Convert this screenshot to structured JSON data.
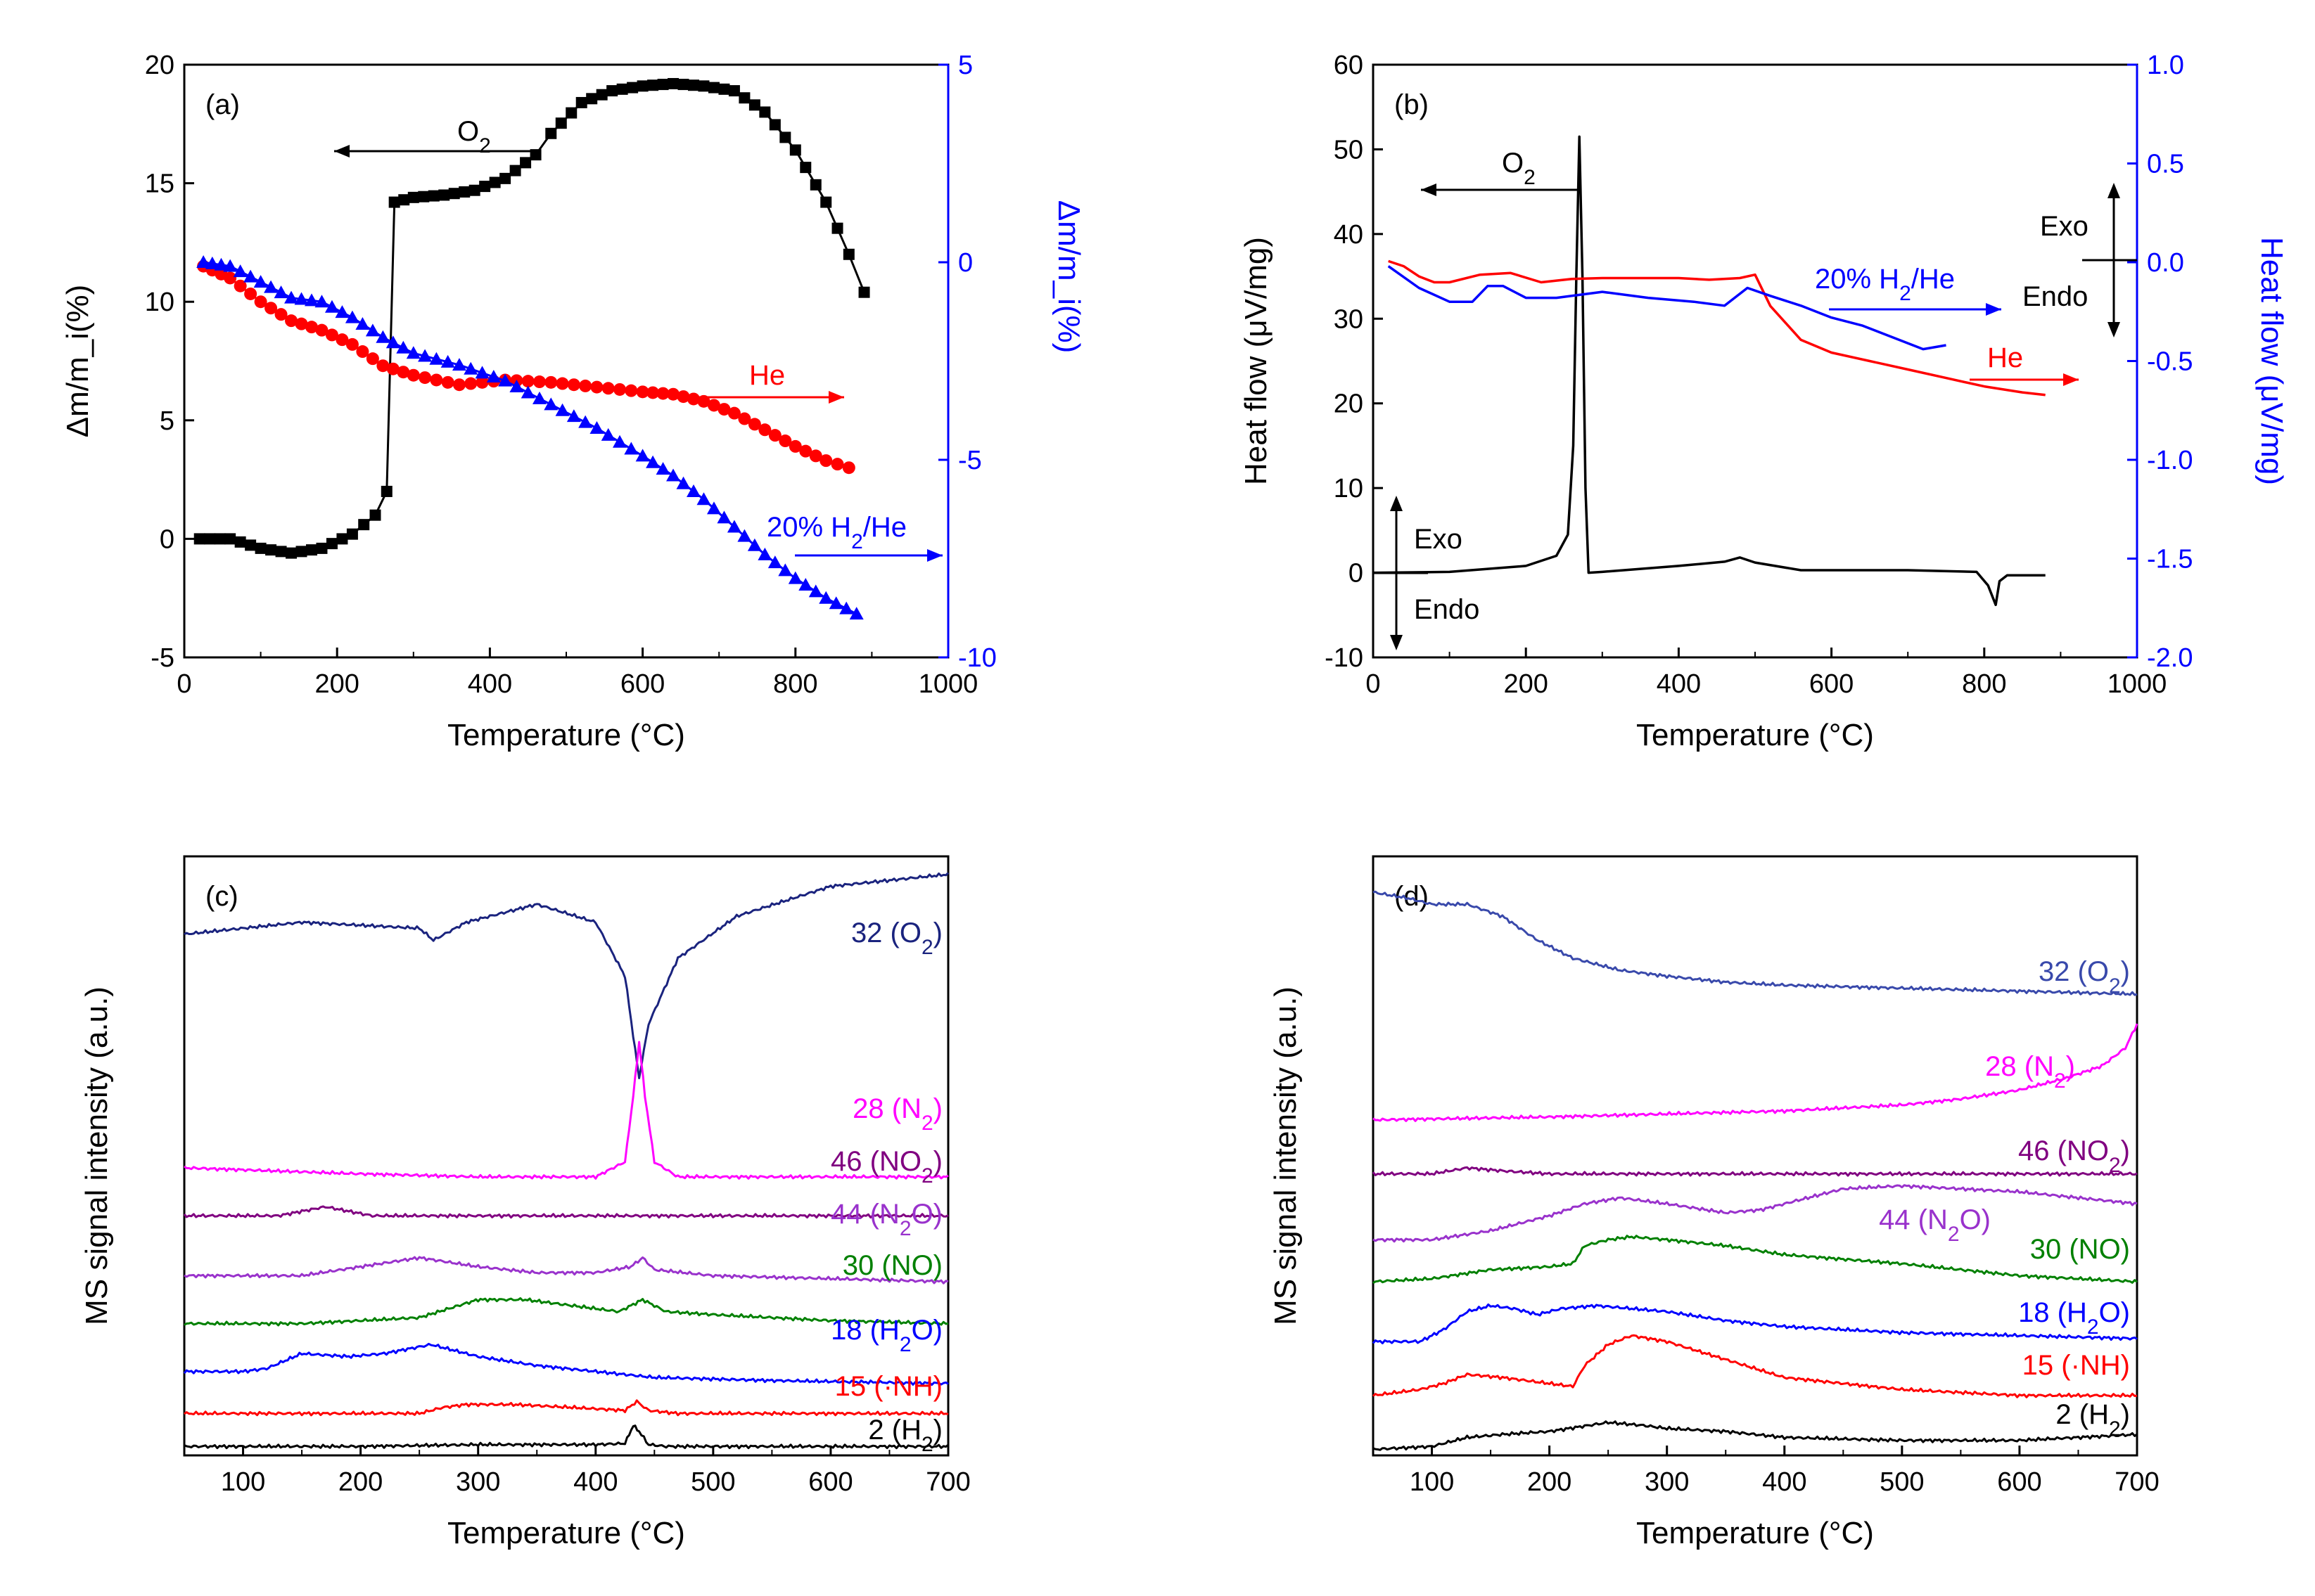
{
  "figure": {
    "name": "Four-panel thermal analysis and mass spectrometry figure"
  },
  "chart_data": [
    {
      "panel": "(a)",
      "type": "scatter",
      "title": "",
      "xlabel": "Temperature (°C)",
      "ylabel": "Δm/m_i(%)",
      "ylabel_right": "Δm/m_i(%)",
      "xlim": [
        0,
        1000
      ],
      "ylim": [
        -5,
        20
      ],
      "ylim_right": [
        -10,
        5
      ],
      "xticks": [
        0,
        200,
        400,
        600,
        800,
        1000
      ],
      "yticks": [
        -5,
        0,
        5,
        10,
        15,
        20
      ],
      "yticks_right": [
        -10,
        -5,
        0,
        5
      ],
      "series": [
        {
          "name": "O2",
          "axis": "left",
          "color": "#000000",
          "marker": "square",
          "x": [
            20,
            60,
            100,
            140,
            180,
            220,
            250,
            265,
            275,
            300,
            340,
            380,
            420,
            460,
            480,
            520,
            560,
            600,
            640,
            680,
            720,
            760,
            800,
            840,
            870,
            890
          ],
          "y": [
            0,
            0,
            -0.4,
            -0.6,
            -0.4,
            0.2,
            1.0,
            2.0,
            14.2,
            14.4,
            14.5,
            14.7,
            15.2,
            16.2,
            17.1,
            18.4,
            18.9,
            19.1,
            19.2,
            19.1,
            18.9,
            18.0,
            16.4,
            14.2,
            12.0,
            10.4
          ]
        },
        {
          "name": "He",
          "axis": "left",
          "color": "#ff0000",
          "marker": "circle",
          "x": [
            25,
            60,
            100,
            140,
            180,
            220,
            260,
            300,
            360,
            420,
            480,
            540,
            600,
            640,
            680,
            720,
            760,
            800,
            840,
            870
          ],
          "y": [
            11.5,
            11.0,
            10.0,
            9.2,
            8.8,
            8.2,
            7.3,
            6.9,
            6.5,
            6.7,
            6.6,
            6.4,
            6.2,
            6.1,
            5.8,
            5.3,
            4.6,
            3.9,
            3.3,
            3.0
          ]
        },
        {
          "name": "20% H2/He",
          "axis": "right",
          "color": "#0000ff",
          "marker": "triangle",
          "x": [
            25,
            60,
            100,
            140,
            180,
            220,
            260,
            300,
            360,
            420,
            480,
            540,
            600,
            640,
            680,
            720,
            760,
            800,
            840,
            880
          ],
          "y": [
            0,
            -0.1,
            -0.5,
            -0.9,
            -1.0,
            -1.4,
            -1.9,
            -2.3,
            -2.6,
            -3.0,
            -3.6,
            -4.2,
            -4.9,
            -5.4,
            -6.0,
            -6.7,
            -7.4,
            -8.0,
            -8.5,
            -8.9
          ]
        }
      ],
      "annotations": [
        {
          "text": "O2",
          "arrow": "left"
        },
        {
          "text": "He",
          "arrow": "right"
        },
        {
          "text": "20% H2/He",
          "arrow": "right"
        }
      ]
    },
    {
      "panel": "(b)",
      "type": "line",
      "title": "",
      "xlabel": "Temperature (°C)",
      "ylabel": "Heat flow (μV/mg)",
      "ylabel_right": "Heat flow (μV/mg)",
      "xlim": [
        0,
        1000
      ],
      "ylim": [
        -10,
        60
      ],
      "ylim_right": [
        -2.0,
        1.0
      ],
      "xticks": [
        0,
        200,
        400,
        600,
        800,
        1000
      ],
      "yticks": [
        -10,
        0,
        10,
        20,
        30,
        40,
        50,
        60
      ],
      "yticks_right": [
        -2.0,
        -1.5,
        -1.0,
        -0.5,
        0.0,
        0.5,
        1.0
      ],
      "series": [
        {
          "name": "O2",
          "axis": "left",
          "color": "#000000",
          "x": [
            0,
            100,
            200,
            240,
            255,
            262,
            266,
            270,
            274,
            278,
            282,
            300,
            400,
            460,
            480,
            500,
            560,
            700,
            790,
            805,
            815,
            820,
            830,
            880
          ],
          "y": [
            0,
            0.1,
            0.8,
            2.0,
            4.5,
            15,
            35,
            51.5,
            35,
            10,
            0,
            0.1,
            0.8,
            1.3,
            1.8,
            1.2,
            0.3,
            0.3,
            0.1,
            -1.5,
            -3.8,
            -1.0,
            -0.3,
            -0.3
          ]
        },
        {
          "name": "He",
          "axis": "left",
          "color": "#ff0000",
          "x": [
            20,
            40,
            60,
            80,
            100,
            140,
            180,
            220,
            260,
            300,
            360,
            400,
            440,
            480,
            500,
            520,
            560,
            600,
            650,
            700,
            750,
            800,
            850,
            880
          ],
          "y": [
            36.8,
            36.2,
            35.0,
            34.3,
            34.3,
            35.2,
            35.4,
            34.3,
            34.7,
            34.8,
            34.8,
            34.8,
            34.6,
            34.8,
            35.2,
            31.5,
            27.5,
            26.0,
            25.0,
            24.0,
            23.0,
            22.0,
            21.3,
            21.0
          ]
        },
        {
          "name": "20% H2/He",
          "axis": "right",
          "color": "#0000ff",
          "x": [
            20,
            60,
            100,
            130,
            150,
            170,
            200,
            240,
            300,
            360,
            420,
            460,
            490,
            520,
            560,
            600,
            640,
            680,
            720,
            750
          ],
          "y": [
            -0.02,
            -0.13,
            -0.2,
            -0.2,
            -0.12,
            -0.12,
            -0.18,
            -0.18,
            -0.15,
            -0.18,
            -0.2,
            -0.22,
            -0.13,
            -0.17,
            -0.22,
            -0.28,
            -0.32,
            -0.38,
            -0.44,
            -0.42
          ]
        }
      ],
      "annotations": [
        {
          "text": "O2",
          "arrow": "left"
        },
        {
          "text": "20% H2/He",
          "arrow": "right"
        },
        {
          "text": "He",
          "arrow": "right"
        },
        {
          "text": "Exo"
        },
        {
          "text": "Endo"
        },
        {
          "text": "Exo"
        },
        {
          "text": "Endo"
        }
      ]
    },
    {
      "panel": "(c)",
      "type": "line",
      "title": "",
      "xlabel": "Temperature (°C)",
      "ylabel": "MS signal intensity (a.u.)",
      "xlim": [
        50,
        700
      ],
      "xticks": [
        100,
        200,
        300,
        400,
        500,
        600,
        700
      ],
      "y_units": "arbitrary (stacked, normalized)",
      "series": [
        {
          "name": "32 (O2)",
          "color": "#1a237e",
          "x": [
            50,
            150,
            250,
            262,
            290,
            350,
            400,
            425,
            432,
            437,
            445,
            470,
            520,
            600,
            700
          ],
          "y": [
            0.87,
            0.89,
            0.88,
            0.86,
            0.89,
            0.92,
            0.89,
            0.8,
            0.7,
            0.63,
            0.72,
            0.83,
            0.9,
            0.95,
            0.97
          ]
        },
        {
          "name": "28 (N2)",
          "color": "#ff00ff",
          "x": [
            50,
            200,
            300,
            400,
            425,
            432,
            437,
            442,
            450,
            470,
            550,
            700
          ],
          "y": [
            0.48,
            0.47,
            0.465,
            0.465,
            0.49,
            0.6,
            0.69,
            0.6,
            0.49,
            0.465,
            0.465,
            0.465
          ]
        },
        {
          "name": "46 (NO2)",
          "color": "#800080",
          "x": [
            50,
            130,
            170,
            210,
            260,
            400,
            700
          ],
          "y": [
            0.4,
            0.4,
            0.415,
            0.4,
            0.4,
            0.4,
            0.4
          ]
        },
        {
          "name": "44 (N2O)",
          "color": "#9932cc",
          "x": [
            50,
            150,
            200,
            250,
            300,
            350,
            400,
            430,
            440,
            450,
            500,
            600,
            700
          ],
          "y": [
            0.3,
            0.3,
            0.315,
            0.33,
            0.315,
            0.305,
            0.305,
            0.315,
            0.33,
            0.31,
            0.3,
            0.295,
            0.29
          ]
        },
        {
          "name": "30 (NO)",
          "color": "#008000",
          "x": [
            50,
            150,
            250,
            275,
            300,
            340,
            380,
            420,
            430,
            440,
            460,
            500,
            600,
            700
          ],
          "y": [
            0.22,
            0.22,
            0.23,
            0.245,
            0.26,
            0.26,
            0.25,
            0.24,
            0.25,
            0.26,
            0.24,
            0.235,
            0.225,
            0.22
          ]
        },
        {
          "name": "18 (H2O)",
          "color": "#0000ff",
          "x": [
            50,
            100,
            120,
            150,
            190,
            220,
            260,
            300,
            350,
            400,
            450,
            550,
            700
          ],
          "y": [
            0.14,
            0.14,
            0.145,
            0.17,
            0.165,
            0.17,
            0.185,
            0.165,
            0.15,
            0.14,
            0.13,
            0.125,
            0.12
          ]
        },
        {
          "name": "15 (·NH)",
          "color": "#ff0000",
          "x": [
            50,
            150,
            250,
            270,
            290,
            330,
            380,
            425,
            435,
            445,
            470,
            550,
            700
          ],
          "y": [
            0.07,
            0.07,
            0.07,
            0.08,
            0.085,
            0.085,
            0.08,
            0.075,
            0.09,
            0.075,
            0.07,
            0.07,
            0.07
          ]
        },
        {
          "name": "2 (H2)",
          "color": "#000000",
          "x": [
            50,
            200,
            300,
            400,
            425,
            432,
            437,
            445,
            460,
            700
          ],
          "y": [
            0.015,
            0.015,
            0.018,
            0.018,
            0.02,
            0.05,
            0.04,
            0.018,
            0.015,
            0.015
          ]
        }
      ]
    },
    {
      "panel": "(d)",
      "type": "line",
      "title": "",
      "xlabel": "Temperature (°C)",
      "ylabel": "MS signal intensity (a.u.)",
      "xlim": [
        50,
        700
      ],
      "xticks": [
        100,
        200,
        300,
        400,
        500,
        600,
        700
      ],
      "y_units": "arbitrary (stacked, normalized)",
      "series": [
        {
          "name": "32 (O2)",
          "color": "#3949ab",
          "x": [
            50,
            80,
            100,
            130,
            160,
            190,
            220,
            260,
            300,
            350,
            400,
            500,
            600,
            700
          ],
          "y": [
            0.94,
            0.93,
            0.92,
            0.92,
            0.9,
            0.86,
            0.83,
            0.81,
            0.8,
            0.79,
            0.785,
            0.78,
            0.775,
            0.77
          ]
        },
        {
          "name": "28 (N2)",
          "color": "#ff00ff",
          "x": [
            50,
            200,
            300,
            400,
            500,
            550,
            600,
            640,
            670,
            690,
            700
          ],
          "y": [
            0.56,
            0.565,
            0.57,
            0.575,
            0.585,
            0.595,
            0.61,
            0.63,
            0.65,
            0.68,
            0.72
          ]
        },
        {
          "name": "46 (NO2)",
          "color": "#800080",
          "x": [
            50,
            100,
            130,
            160,
            200,
            300,
            700
          ],
          "y": [
            0.47,
            0.47,
            0.48,
            0.475,
            0.47,
            0.47,
            0.47
          ]
        },
        {
          "name": "44 (N2O)",
          "color": "#9932cc",
          "x": [
            50,
            100,
            150,
            200,
            230,
            260,
            300,
            350,
            380,
            420,
            450,
            500,
            550,
            600,
            650,
            700
          ],
          "y": [
            0.36,
            0.36,
            0.375,
            0.4,
            0.42,
            0.43,
            0.42,
            0.405,
            0.41,
            0.43,
            0.445,
            0.45,
            0.445,
            0.44,
            0.43,
            0.42
          ]
        },
        {
          "name": "30 (NO)",
          "color": "#008000",
          "x": [
            50,
            100,
            150,
            200,
            220,
            230,
            250,
            270,
            300,
            350,
            400,
            500,
            600,
            700
          ],
          "y": [
            0.29,
            0.295,
            0.31,
            0.315,
            0.32,
            0.35,
            0.36,
            0.365,
            0.36,
            0.35,
            0.335,
            0.32,
            0.3,
            0.29
          ]
        },
        {
          "name": "18 (H2O)",
          "color": "#0000ff",
          "x": [
            50,
            90,
            110,
            130,
            150,
            170,
            190,
            210,
            240,
            270,
            300,
            350,
            400,
            500,
            600,
            700
          ],
          "y": [
            0.19,
            0.19,
            0.21,
            0.24,
            0.25,
            0.245,
            0.235,
            0.245,
            0.25,
            0.245,
            0.24,
            0.225,
            0.215,
            0.205,
            0.2,
            0.195
          ]
        },
        {
          "name": "15 (·NH)",
          "color": "#ff0000",
          "x": [
            50,
            90,
            110,
            130,
            160,
            200,
            220,
            230,
            250,
            270,
            300,
            350,
            400,
            500,
            600,
            700
          ],
          "y": [
            0.1,
            0.11,
            0.12,
            0.135,
            0.13,
            0.12,
            0.115,
            0.15,
            0.185,
            0.2,
            0.19,
            0.16,
            0.13,
            0.11,
            0.1,
            0.1
          ]
        },
        {
          "name": "2 (H2)",
          "color": "#000000",
          "x": [
            50,
            100,
            130,
            160,
            200,
            250,
            280,
            300,
            350,
            400,
            500,
            600,
            650,
            700
          ],
          "y": [
            0.01,
            0.015,
            0.03,
            0.035,
            0.04,
            0.055,
            0.05,
            0.045,
            0.04,
            0.03,
            0.025,
            0.025,
            0.03,
            0.035
          ]
        }
      ]
    }
  ]
}
